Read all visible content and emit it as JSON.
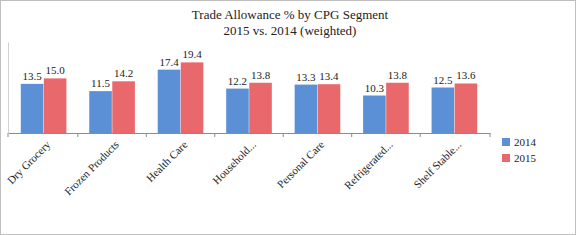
{
  "chart_data": {
    "type": "bar",
    "title": "Trade Allowance % by CPG Segment",
    "subtitle": "2015 vs. 2014 (weighted)",
    "categories": [
      "Dry Grocery",
      "Frozen Products",
      "Health Care",
      "Household...",
      "Personal Care",
      "Refrigerated...",
      "Shelf Stable..."
    ],
    "series": [
      {
        "name": "2014",
        "color": "#5b8fd6",
        "values": [
          13.5,
          11.5,
          17.4,
          12.2,
          13.3,
          10.3,
          12.5
        ]
      },
      {
        "name": "2015",
        "color": "#e8686b",
        "values": [
          15.0,
          14.2,
          19.4,
          13.8,
          13.4,
          13.8,
          13.6
        ]
      }
    ],
    "ylim": [
      0,
      25
    ],
    "data_labels": true,
    "tick_labels": "x",
    "grid": false,
    "legend": "right"
  }
}
